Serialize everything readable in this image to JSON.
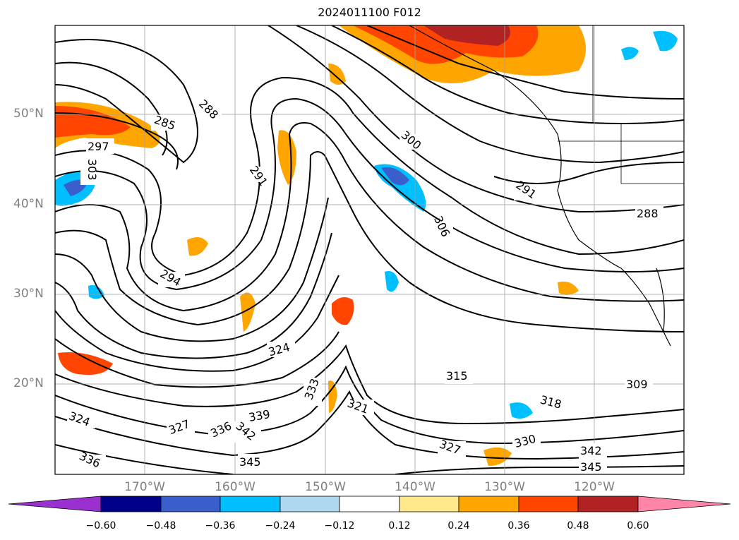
{
  "title": "2024011100 F012",
  "lat_labels": [
    "50°N",
    "40°N",
    "30°N",
    "20°N"
  ],
  "lon_labels": [
    "170°W",
    "160°W",
    "150°W",
    "140°W",
    "130°W",
    "120°W"
  ],
  "contour_labels": [
    "285",
    "288",
    "291",
    "294",
    "297",
    "300",
    "303",
    "306",
    "309",
    "315",
    "318",
    "321",
    "324",
    "327",
    "330",
    "333",
    "336",
    "339",
    "342",
    "345"
  ],
  "colorbar": {
    "ticks": [
      "−0.60",
      "−0.48",
      "−0.36",
      "−0.24",
      "−0.12",
      "0.12",
      "0.24",
      "0.36",
      "0.48",
      "0.60"
    ],
    "colors": [
      "#9b30d0",
      "#00008b",
      "#3a5fcd",
      "#00bfff",
      "#add8f0",
      "#ffffff",
      "#ffe98a",
      "#ffa500",
      "#ff4500",
      "#b22222",
      "#ff85a8"
    ]
  },
  "colors": {
    "grid": "#a0a0a0",
    "contour": "#000000",
    "axis_label": "#808080"
  }
}
